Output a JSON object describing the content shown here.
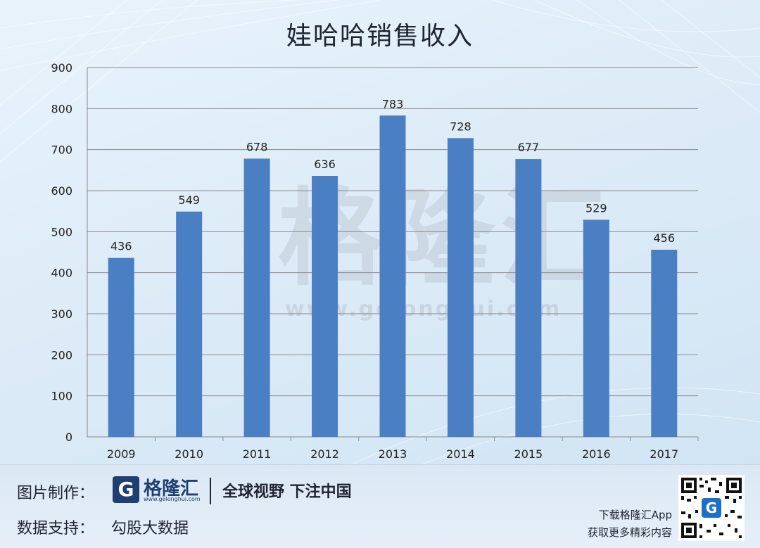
{
  "title": "娃哈哈销售收入",
  "chart_data": {
    "type": "bar",
    "title": "娃哈哈销售收入",
    "categories": [
      "2009",
      "2010",
      "2011",
      "2012",
      "2013",
      "2014",
      "2015",
      "2016",
      "2017"
    ],
    "values": [
      436,
      549,
      678,
      636,
      783,
      728,
      677,
      529,
      456
    ],
    "data_labels": [
      "436",
      "549",
      "678",
      "636",
      "783",
      "728",
      "677",
      "529",
      "456"
    ],
    "yticks": [
      "0",
      "100",
      "200",
      "300",
      "400",
      "500",
      "600",
      "700",
      "800",
      "900"
    ],
    "ylim": [
      0,
      900
    ],
    "xlabel": "",
    "ylabel": "",
    "grid": true,
    "bar_color": "#4a7fc4"
  },
  "watermark": {
    "brand": "格隆汇",
    "url": "www.gelonghui.com"
  },
  "footer": {
    "credit_label": "图片制作：",
    "logo_glyph": "G",
    "logo_name": "格隆汇",
    "logo_url": "www.gelonghui.com",
    "slogan": "全球视野 下注中国",
    "data_label": "数据支持：",
    "data_source": "勾股大数据",
    "download_line1": "下载格隆汇App",
    "download_line2": "获取更多精彩内容",
    "qr_glyph": "G"
  },
  "colors": {
    "brand": "#1f3f73",
    "bar": "#4a7fc4"
  }
}
